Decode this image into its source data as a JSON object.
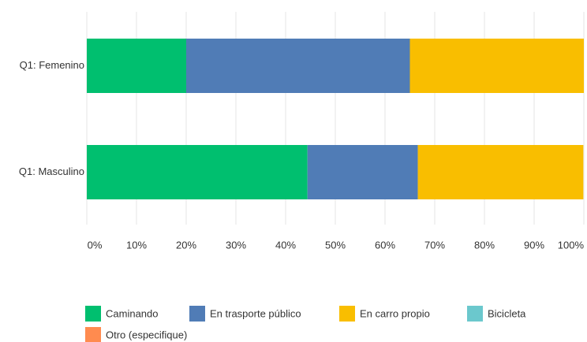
{
  "chart_data": {
    "type": "stacked-bar-horizontal",
    "categories": [
      "Q1: Femenino",
      "Q1: Masculino"
    ],
    "series": [
      {
        "name": "Caminando",
        "color": "#00bf6f",
        "values": [
          20,
          44.4
        ]
      },
      {
        "name": "En trasporte público",
        "color": "#507cb6",
        "values": [
          45,
          22.2
        ]
      },
      {
        "name": "En carro propio",
        "color": "#f9be00",
        "values": [
          35,
          33.3
        ]
      },
      {
        "name": "Bicicleta",
        "color": "#6bc8cd",
        "values": [
          0,
          0
        ]
      },
      {
        "name": "Otro (especifique)",
        "color": "#ff8b4f",
        "values": [
          0,
          0
        ]
      }
    ],
    "xlim": [
      0,
      100
    ],
    "xticks": [
      {
        "value": 0,
        "label": "0%"
      },
      {
        "value": 10,
        "label": "10%"
      },
      {
        "value": 20,
        "label": "20%"
      },
      {
        "value": 30,
        "label": "30%"
      },
      {
        "value": 40,
        "label": "40%"
      },
      {
        "value": 50,
        "label": "50%"
      },
      {
        "value": 60,
        "label": "60%"
      },
      {
        "value": 70,
        "label": "70%"
      },
      {
        "value": 80,
        "label": "80%"
      },
      {
        "value": 90,
        "label": "90%"
      },
      {
        "value": 100,
        "label": "100%"
      }
    ],
    "grid": true,
    "legend": "bottom"
  }
}
